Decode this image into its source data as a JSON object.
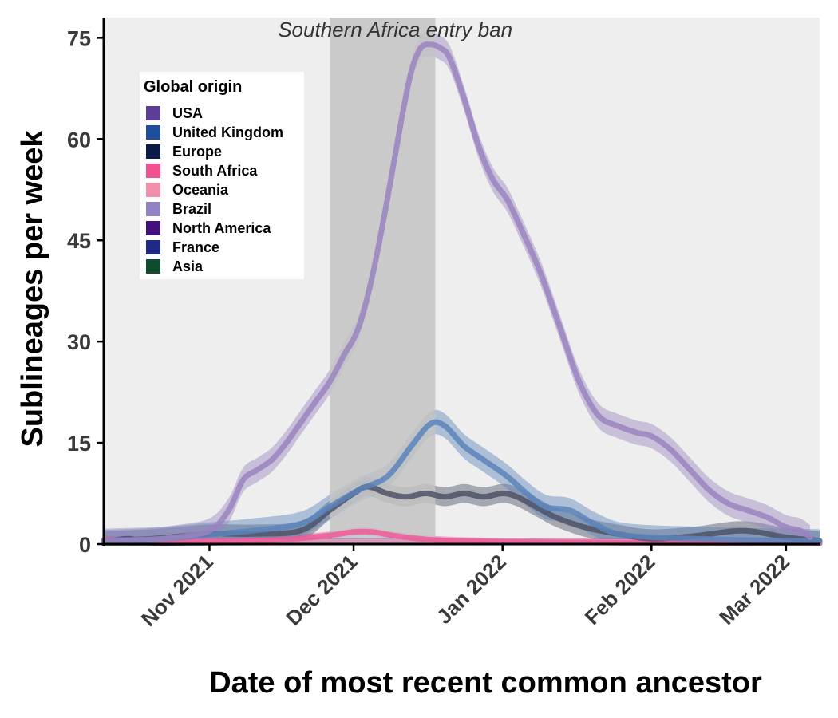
{
  "chart_data": {
    "type": "area",
    "title": "",
    "xlabel": "Date of most recent common ancestor",
    "ylabel": "Sublineages per week",
    "x_axis": {
      "type": "date",
      "range": [
        "2021-10-10",
        "2022-03-08"
      ],
      "ticks": [
        {
          "date": "2021-11-01",
          "label": "Nov 2021"
        },
        {
          "date": "2021-12-01",
          "label": "Dec 2021"
        },
        {
          "date": "2022-01-01",
          "label": "Jan 2022"
        },
        {
          "date": "2022-02-01",
          "label": "Feb 2022"
        },
        {
          "date": "2022-03-01",
          "label": "Mar 2022"
        }
      ]
    },
    "y_axis": {
      "range": [
        0,
        78
      ],
      "ticks": [
        0,
        15,
        30,
        45,
        60,
        75
      ]
    },
    "grid": false,
    "background": "#eeeeef",
    "annotation": {
      "text": "Southern Africa entry ban",
      "shaded_period": [
        "2021-11-26",
        "2021-12-18"
      ],
      "color": "#c3c3c3"
    },
    "legend": {
      "title": "Global origin",
      "placement": "top-left",
      "entries": [
        {
          "name": "USA",
          "color": "#5b3f96"
        },
        {
          "name": "United Kingdom",
          "color": "#1f4e9a"
        },
        {
          "name": "Europe",
          "color": "#0c1a47"
        },
        {
          "name": "South Africa",
          "color": "#f0518e"
        },
        {
          "name": "Oceania",
          "color": "#f28fab"
        },
        {
          "name": "Brazil",
          "color": "#9182c2"
        },
        {
          "name": "North America",
          "color": "#41107a"
        },
        {
          "name": "France",
          "color": "#1e2a85"
        },
        {
          "name": "Asia",
          "color": "#0d4c2c"
        }
      ]
    },
    "series": [
      {
        "name": "Brazil",
        "color": "#9a84bf",
        "x": [
          "2021-10-10",
          "2021-10-15",
          "2021-10-20",
          "2021-10-25",
          "2021-11-01",
          "2021-11-05",
          "2021-11-08",
          "2021-11-11",
          "2021-11-14",
          "2021-11-17",
          "2021-11-20",
          "2021-11-23",
          "2021-11-26",
          "2021-11-29",
          "2021-12-02",
          "2021-12-05",
          "2021-12-08",
          "2021-12-11",
          "2021-12-13",
          "2021-12-15",
          "2021-12-17",
          "2021-12-19",
          "2021-12-21",
          "2021-12-24",
          "2021-12-27",
          "2021-12-30",
          "2022-01-02",
          "2022-01-05",
          "2022-01-09",
          "2022-01-13",
          "2022-01-17",
          "2022-01-21",
          "2022-01-25",
          "2022-01-29",
          "2022-02-01",
          "2022-02-05",
          "2022-02-09",
          "2022-02-13",
          "2022-02-17",
          "2022-02-21",
          "2022-02-25",
          "2022-03-01",
          "2022-03-04",
          "2022-03-06"
        ],
        "values": [
          0.5,
          0.6,
          0.7,
          1.0,
          2.0,
          5.0,
          9.5,
          11.0,
          12.5,
          15.0,
          18.0,
          21.0,
          24.0,
          28.0,
          32.0,
          40.0,
          51.0,
          63.0,
          70.0,
          73.5,
          74.0,
          73.5,
          72.0,
          66.0,
          59.0,
          54.0,
          51.0,
          46.5,
          40.0,
          32.0,
          24.0,
          19.0,
          17.5,
          16.5,
          16.0,
          14.0,
          11.0,
          8.0,
          6.0,
          5.0,
          4.0,
          2.5,
          2.0,
          1.0
        ],
        "band": 1.8
      },
      {
        "name": "United Kingdom",
        "color": "#5b84bb",
        "x": [
          "2021-10-10",
          "2021-10-20",
          "2021-11-01",
          "2021-11-10",
          "2021-11-20",
          "2021-11-26",
          "2021-12-02",
          "2021-12-08",
          "2021-12-13",
          "2021-12-17",
          "2021-12-20",
          "2021-12-24",
          "2021-12-28",
          "2022-01-02",
          "2022-01-06",
          "2022-01-10",
          "2022-01-15",
          "2022-01-20",
          "2022-01-25",
          "2022-02-01",
          "2022-02-10",
          "2022-02-20",
          "2022-03-01",
          "2022-03-08"
        ],
        "values": [
          0.3,
          0.6,
          1.4,
          2.0,
          3.0,
          5.5,
          8.0,
          10.0,
          14.5,
          17.8,
          17.5,
          14.5,
          12.5,
          10.0,
          7.5,
          5.5,
          5.0,
          3.0,
          1.5,
          1.0,
          0.8,
          0.6,
          0.5,
          0.4
        ],
        "band": 1.8
      },
      {
        "name": "Europe",
        "color": "#4e5266",
        "x": [
          "2021-10-10",
          "2021-10-20",
          "2021-11-01",
          "2021-11-10",
          "2021-11-20",
          "2021-11-26",
          "2021-12-01",
          "2021-12-04",
          "2021-12-08",
          "2021-12-12",
          "2021-12-16",
          "2021-12-20",
          "2021-12-24",
          "2021-12-28",
          "2022-01-01",
          "2022-01-04",
          "2022-01-08",
          "2022-01-12",
          "2022-01-18",
          "2022-01-25",
          "2022-02-01",
          "2022-02-10",
          "2022-02-20",
          "2022-03-01",
          "2022-03-08"
        ],
        "values": [
          0.5,
          0.8,
          1.5,
          1.5,
          2.0,
          5.0,
          7.5,
          8.5,
          7.5,
          7.0,
          7.5,
          7.0,
          7.5,
          7.0,
          7.5,
          7.0,
          5.5,
          4.0,
          2.5,
          1.5,
          0.8,
          1.2,
          2.0,
          1.0,
          0.5
        ],
        "band": 1.4
      },
      {
        "name": "South Africa",
        "color": "#ee5a98",
        "x": [
          "2021-10-10",
          "2021-10-20",
          "2021-11-01",
          "2021-11-15",
          "2021-11-25",
          "2021-12-01",
          "2021-12-05",
          "2021-12-10",
          "2021-12-18",
          "2022-01-01",
          "2022-02-01",
          "2022-03-08"
        ],
        "values": [
          0.6,
          0.5,
          0.4,
          0.6,
          1.2,
          1.8,
          1.8,
          1.2,
          0.6,
          0.3,
          0.2,
          0.2
        ],
        "band": 0.6
      },
      {
        "name": "Oceania",
        "color": "#f4a9c4",
        "x": [
          "2021-10-10",
          "2021-11-01",
          "2021-12-01",
          "2022-01-01",
          "2022-02-01",
          "2022-03-08"
        ],
        "values": [
          0.2,
          0.3,
          0.4,
          0.4,
          0.3,
          0.2
        ],
        "band": 0.3
      },
      {
        "name": "France",
        "color": "#3b4a8c",
        "x": [
          "2021-10-10",
          "2021-10-15",
          "2021-10-20",
          "2021-11-01",
          "2021-12-01",
          "2022-01-01",
          "2022-02-01",
          "2022-03-08"
        ],
        "values": [
          0.2,
          0.8,
          0.2,
          0.3,
          0.5,
          0.4,
          0.3,
          0.2
        ],
        "band": 0.4
      },
      {
        "name": "Asia",
        "color": "#4f6e5c",
        "x": [
          "2021-10-10",
          "2021-11-01",
          "2021-12-01",
          "2022-01-01",
          "2022-02-01",
          "2022-03-08"
        ],
        "values": [
          0.1,
          0.2,
          0.3,
          0.3,
          0.2,
          0.1
        ],
        "band": 0.2
      }
    ]
  }
}
